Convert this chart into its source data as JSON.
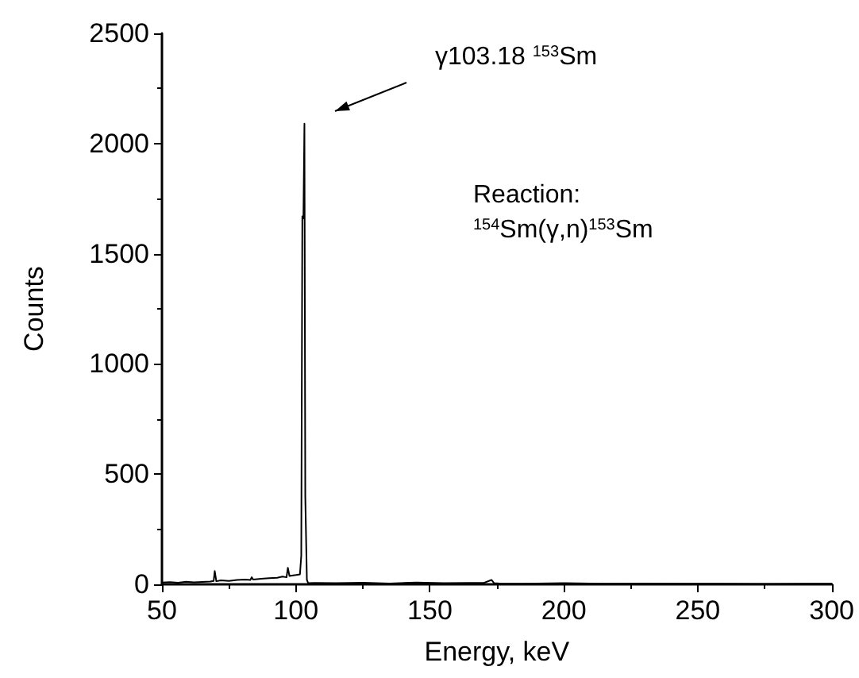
{
  "chart_data": {
    "type": "line",
    "xlabel": "Energy, keV",
    "ylabel": "Counts",
    "x": [
      50,
      53,
      56,
      59,
      62,
      65,
      68,
      69.3,
      69.7,
      70.3,
      72,
      75,
      78,
      81,
      83,
      83.5,
      84,
      87,
      90,
      93,
      95,
      96.5,
      97,
      97.6,
      98.5,
      100,
      101.5,
      102,
      102.4,
      102.8,
      103.18,
      103.5,
      103.7,
      104.1,
      104.6,
      107,
      115,
      125,
      135,
      145,
      155,
      165,
      170,
      173,
      174,
      176,
      185,
      200,
      215,
      230,
      245,
      260,
      275,
      290,
      300
    ],
    "series": [
      {
        "color": "#000000",
        "values": [
          8,
          10,
          7,
          12,
          9,
          11,
          13,
          15,
          60,
          14,
          18,
          15,
          20,
          22,
          20,
          32,
          22,
          25,
          28,
          30,
          35,
          32,
          75,
          38,
          40,
          42,
          45,
          130,
          1670,
          1660,
          2090,
          400,
          400,
          20,
          5,
          6,
          5,
          7,
          4,
          8,
          5,
          6,
          6,
          20,
          5,
          4,
          3,
          5,
          3,
          4,
          3,
          3,
          2,
          3,
          3
        ]
      }
    ],
    "xlim": [
      50,
      300
    ],
    "xticks": [
      50,
      100,
      150,
      200,
      250,
      300
    ],
    "ylim": [
      0,
      2500
    ],
    "yticks": [
      0,
      500,
      1000,
      1500,
      2000,
      2500
    ],
    "grid": false,
    "marker": "none",
    "line_style": "solid",
    "annotations": [
      "γ103.18 $^{153}$Sm",
      "Reaction:\n$^{154}$Sm(γ,n)$^{153}$Sm"
    ]
  }
}
